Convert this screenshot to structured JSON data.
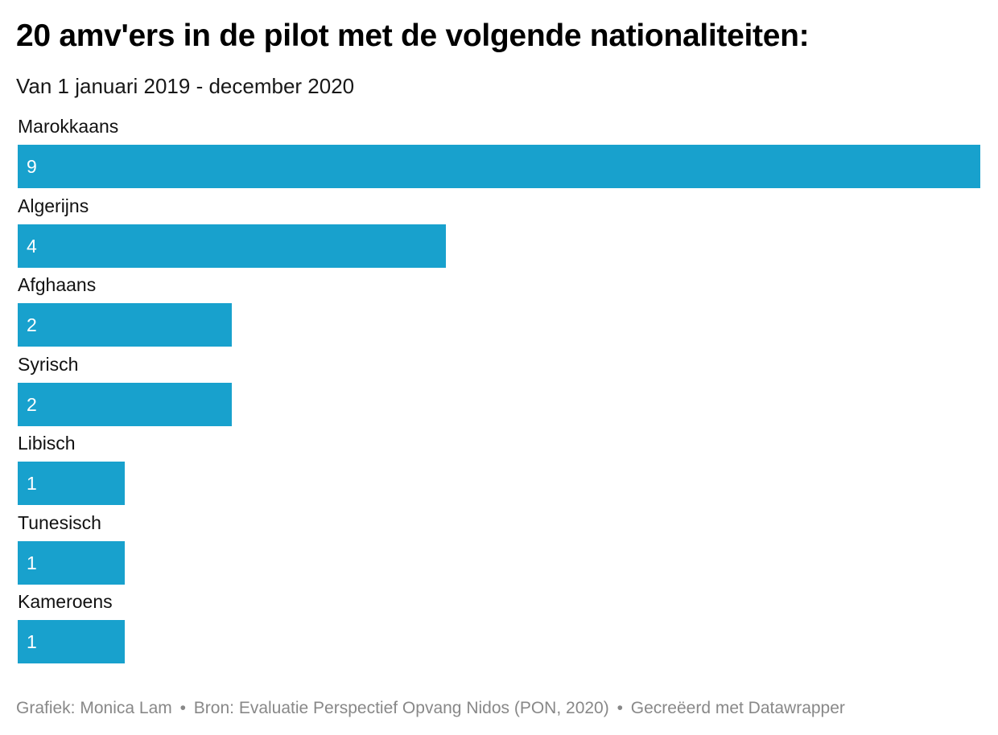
{
  "chart_data": {
    "type": "bar",
    "orientation": "horizontal",
    "title": "20 amv'ers in de pilot met de volgende nationaliteiten:",
    "subtitle": "Van 1 januari 2019 - december 2020",
    "categories": [
      "Marokkaans",
      "Algerijns",
      "Afghaans",
      "Syrisch",
      "Libisch",
      "Tunesisch",
      "Kameroens"
    ],
    "values": [
      9,
      4,
      2,
      2,
      1,
      1,
      1
    ],
    "xlim": [
      0,
      9
    ],
    "bar_color": "#18a1cd",
    "value_label_color": "#ffffff",
    "grid": false,
    "xlabel": "",
    "ylabel": ""
  },
  "footer": {
    "credit": "Grafiek: Monica Lam",
    "source": "Bron: Evaluatie Perspectief Opvang Nidos (PON, 2020)",
    "tool": "Gecreëerd met Datawrapper",
    "separator": "•"
  }
}
